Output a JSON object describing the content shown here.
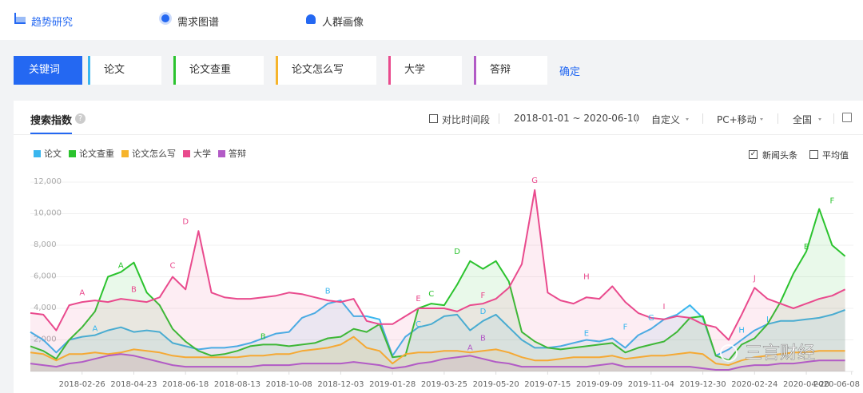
{
  "nav": [
    "趋势研究",
    "需求图谱",
    "人群画像"
  ],
  "keyword_bar": {
    "label": "关键词",
    "keywords": [
      {
        "text": "论文",
        "color": "#3ab6ee"
      },
      {
        "text": "论文查重",
        "color": "#2bc32e"
      },
      {
        "text": "论文怎么写",
        "color": "#f6b42b"
      },
      {
        "text": "大学",
        "color": "#e94a8d"
      },
      {
        "text": "答辩",
        "color": "#b25bc6"
      }
    ],
    "confirm": "确定"
  },
  "panel": {
    "title": "搜索指数",
    "help": "?",
    "compare": "对比时间段",
    "date_range": "2018-01-01 ~ 2020-06-10",
    "custom": "自定义",
    "device": "PC+移动",
    "region": "全国",
    "news": "新闻头条",
    "average": "平均值"
  },
  "watermark": "三言财经",
  "chart_data": {
    "type": "line",
    "grid": true,
    "x": [
      "2018-01-01",
      "2018-01-15",
      "2018-01-29",
      "2018-02-12",
      "2018-02-26",
      "2018-03-12",
      "2018-03-26",
      "2018-04-09",
      "2018-04-23",
      "2018-05-07",
      "2018-05-21",
      "2018-06-04",
      "2018-06-18",
      "2018-07-02",
      "2018-07-16",
      "2018-07-30",
      "2018-08-13",
      "2018-08-27",
      "2018-09-10",
      "2018-09-24",
      "2018-10-08",
      "2018-10-22",
      "2018-11-05",
      "2018-11-19",
      "2018-12-03",
      "2018-12-17",
      "2018-12-31",
      "2019-01-14",
      "2019-01-28",
      "2019-02-11",
      "2019-02-25",
      "2019-03-11",
      "2019-03-25",
      "2019-04-08",
      "2019-04-22",
      "2019-05-06",
      "2019-05-20",
      "2019-06-03",
      "2019-06-17",
      "2019-07-01",
      "2019-07-15",
      "2019-07-29",
      "2019-08-12",
      "2019-08-26",
      "2019-09-09",
      "2019-09-23",
      "2019-10-07",
      "2019-10-21",
      "2019-11-04",
      "2019-11-18",
      "2019-12-02",
      "2019-12-16",
      "2019-12-30",
      "2020-01-13",
      "2020-01-27",
      "2020-02-10",
      "2020-02-24",
      "2020-03-09",
      "2020-03-23",
      "2020-04-06",
      "2020-04-20",
      "2020-05-04",
      "2020-05-18",
      "2020-06-01"
    ],
    "xlim": [
      "2018-01-01",
      "2020-06-10"
    ],
    "xticks": [
      "2018-02-26",
      "2018-04-23",
      "2018-06-18",
      "2018-08-13",
      "2018-10-08",
      "2018-12-03",
      "2019-01-28",
      "2019-03-25",
      "2019-05-20",
      "2019-07-15",
      "2019-09-09",
      "2019-11-04",
      "2019-12-30",
      "2020-02-24",
      "2020-04-20",
      "2020-06-08"
    ],
    "ylim": [
      0,
      12000
    ],
    "yticks": [
      {
        "value": 2000,
        "label": "2,000"
      },
      {
        "value": 4000,
        "label": "4,000"
      },
      {
        "value": 6000,
        "label": "6,000"
      },
      {
        "value": 8000,
        "label": "8,000"
      },
      {
        "value": 10000,
        "label": "10,000"
      },
      {
        "value": 12000,
        "label": "12,000"
      }
    ],
    "series": [
      {
        "name": "论文",
        "color": "#3ab6ee",
        "values": [
          2500,
          2000,
          1200,
          2000,
          2200,
          2300,
          2600,
          2800,
          2500,
          2600,
          2500,
          1800,
          1600,
          1400,
          1500,
          1500,
          1600,
          1800,
          2100,
          2400,
          2500,
          3400,
          3700,
          4300,
          4500,
          3500,
          3500,
          3300,
          1000,
          2200,
          2800,
          3000,
          3500,
          3600,
          2600,
          3200,
          3600,
          2800,
          2000,
          1500,
          1500,
          1600,
          1800,
          2000,
          1900,
          2100,
          1500,
          2300,
          2700,
          3300,
          3600,
          4200,
          3400,
          1000,
          1400,
          2000,
          2600,
          3000,
          3200,
          3200,
          3300,
          3400,
          3600,
          3900
        ]
      },
      {
        "name": "论文查重",
        "color": "#2bc32e",
        "values": [
          1600,
          1300,
          800,
          2000,
          2800,
          3800,
          6000,
          6300,
          6900,
          5000,
          4200,
          2700,
          1900,
          1300,
          1000,
          1100,
          1300,
          1600,
          1700,
          1700,
          1600,
          1700,
          1800,
          2100,
          2200,
          2700,
          2500,
          3000,
          900,
          1000,
          4000,
          4300,
          4200,
          5500,
          7000,
          6500,
          7000,
          5700,
          2500,
          1900,
          1500,
          1400,
          1500,
          1600,
          1700,
          1800,
          1200,
          1500,
          1700,
          1900,
          2500,
          3400,
          3500,
          1000,
          700,
          1700,
          2100,
          3000,
          4400,
          6200,
          7600,
          10300,
          8000,
          7300
        ]
      },
      {
        "name": "论文怎么写",
        "color": "#f6b42b",
        "values": [
          1200,
          1100,
          700,
          1100,
          1100,
          1200,
          1100,
          1200,
          1400,
          1300,
          1200,
          1000,
          900,
          900,
          900,
          900,
          900,
          1000,
          1000,
          1100,
          1100,
          1300,
          1400,
          1500,
          1700,
          2200,
          1500,
          1300,
          500,
          1100,
          1200,
          1200,
          1300,
          1300,
          1200,
          1300,
          1400,
          1200,
          900,
          700,
          700,
          800,
          900,
          900,
          900,
          1000,
          800,
          900,
          1000,
          1000,
          1100,
          1200,
          1100,
          500,
          400,
          700,
          900,
          1000,
          1100,
          1200,
          1200,
          1300,
          1300,
          1300
        ]
      },
      {
        "name": "大学",
        "color": "#e94a8d",
        "values": [
          3700,
          3600,
          2600,
          4200,
          4400,
          4500,
          4400,
          4600,
          4500,
          4400,
          4700,
          6000,
          5200,
          8900,
          5000,
          4700,
          4600,
          4600,
          4700,
          4800,
          5000,
          4900,
          4700,
          4500,
          4400,
          4600,
          3200,
          3000,
          3000,
          3500,
          4000,
          4000,
          4000,
          3800,
          4200,
          4300,
          4600,
          5300,
          6800,
          11500,
          5000,
          4500,
          4300,
          4700,
          4600,
          5400,
          4400,
          3700,
          3400,
          3300,
          3500,
          3400,
          3000,
          2800,
          2000,
          3600,
          5300,
          4600,
          4300,
          4000,
          4300,
          4600,
          4800,
          5200
        ]
      },
      {
        "name": "答辩",
        "color": "#b25bc6",
        "values": [
          500,
          400,
          300,
          500,
          600,
          800,
          1000,
          1100,
          1000,
          800,
          600,
          400,
          300,
          300,
          300,
          300,
          300,
          300,
          400,
          400,
          400,
          500,
          500,
          500,
          500,
          600,
          500,
          400,
          200,
          300,
          500,
          600,
          800,
          900,
          1000,
          800,
          600,
          500,
          300,
          300,
          300,
          300,
          300,
          300,
          400,
          500,
          300,
          300,
          300,
          300,
          300,
          300,
          200,
          100,
          100,
          300,
          400,
          400,
          500,
          500,
          600,
          700,
          700,
          700
        ]
      }
    ],
    "annotations": [
      {
        "text": "A",
        "color": "#3ab6ee",
        "x": "2018-03-12",
        "y": 2700
      },
      {
        "text": "B",
        "color": "#3ab6ee",
        "x": "2018-11-19",
        "y": 5100
      },
      {
        "text": "C",
        "color": "#3ab6ee",
        "x": "2019-02-25",
        "y": 3000
      },
      {
        "text": "D",
        "color": "#3ab6ee",
        "x": "2019-05-06",
        "y": 3800
      },
      {
        "text": "E",
        "color": "#3ab6ee",
        "x": "2019-08-26",
        "y": 2400
      },
      {
        "text": "F",
        "color": "#3ab6ee",
        "x": "2019-10-07",
        "y": 2800
      },
      {
        "text": "G",
        "color": "#3ab6ee",
        "x": "2019-11-04",
        "y": 3400
      },
      {
        "text": "H",
        "color": "#3ab6ee",
        "x": "2020-02-10",
        "y": 2600
      },
      {
        "text": "I",
        "color": "#3ab6ee",
        "x": "2020-03-09",
        "y": 3300
      },
      {
        "text": "A",
        "color": "#2bc32e",
        "x": "2018-04-09",
        "y": 6700
      },
      {
        "text": "B",
        "color": "#2bc32e",
        "x": "2018-09-10",
        "y": 2200
      },
      {
        "text": "C",
        "color": "#2bc32e",
        "x": "2019-03-11",
        "y": 4900
      },
      {
        "text": "D",
        "color": "#2bc32e",
        "x": "2019-04-08",
        "y": 7600
      },
      {
        "text": "E",
        "color": "#2bc32e",
        "x": "2020-04-20",
        "y": 7900
      },
      {
        "text": "F",
        "color": "#2bc32e",
        "x": "2020-05-18",
        "y": 10800
      },
      {
        "text": "A",
        "color": "#e94a8d",
        "x": "2018-02-26",
        "y": 5000
      },
      {
        "text": "B",
        "color": "#e94a8d",
        "x": "2018-04-23",
        "y": 5200
      },
      {
        "text": "C",
        "color": "#e94a8d",
        "x": "2018-06-04",
        "y": 6700
      },
      {
        "text": "D",
        "color": "#e94a8d",
        "x": "2018-06-18",
        "y": 9500
      },
      {
        "text": "E",
        "color": "#e94a8d",
        "x": "2019-02-25",
        "y": 4600
      },
      {
        "text": "F",
        "color": "#e94a8d",
        "x": "2019-05-06",
        "y": 4800
      },
      {
        "text": "G",
        "color": "#e94a8d",
        "x": "2019-07-01",
        "y": 12100
      },
      {
        "text": "H",
        "color": "#e94a8d",
        "x": "2019-08-26",
        "y": 6000
      },
      {
        "text": "I",
        "color": "#e94a8d",
        "x": "2019-11-18",
        "y": 4100
      },
      {
        "text": "J",
        "color": "#e94a8d",
        "x": "2020-02-24",
        "y": 5900
      },
      {
        "text": "A",
        "color": "#b25bc6",
        "x": "2019-04-22",
        "y": 1500
      },
      {
        "text": "B",
        "color": "#b25bc6",
        "x": "2019-05-06",
        "y": 2100
      }
    ]
  }
}
